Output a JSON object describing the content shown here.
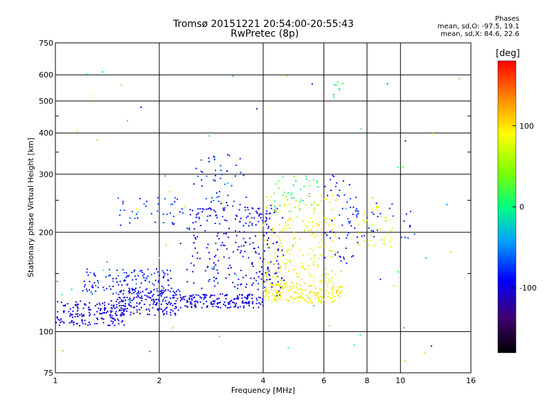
{
  "title_line1": "Tromsø 20151221 20:54:00-20:55:43",
  "title_line2": "RwPretec (8p)",
  "phases": {
    "heading": "Phases",
    "line_o": "mean, sd,O: -97.5, 19.1",
    "line_x": "mean, sd,X: 84.6, 22.6"
  },
  "chart_data": {
    "type": "scatter",
    "xlabel": "Frequency [MHz]",
    "ylabel": "Stationary phase Virtual Height [km]",
    "xscale": "log",
    "yscale": "log",
    "xlim": [
      1,
      16
    ],
    "ylim": [
      75,
      750
    ],
    "xticks": [
      1,
      2,
      4,
      6,
      8,
      10,
      16
    ],
    "xtick_labels": [
      "1",
      "2",
      "4",
      "6",
      "8",
      "10",
      "16"
    ],
    "yticks": [
      75,
      100,
      200,
      300,
      400,
      500,
      600,
      750
    ],
    "ytick_labels": [
      "75",
      "100",
      "200",
      "300",
      "400",
      "500",
      "600",
      "750"
    ],
    "grid": true,
    "colorbar": {
      "label": "[deg]",
      "range": [
        -180,
        180
      ],
      "tick_values": [
        -100,
        0,
        100
      ],
      "tick_labels": [
        "-100",
        "0",
        "100"
      ],
      "colormap": "rainbow"
    },
    "point_groups": [
      {
        "f": [
          1.0,
          1.6
        ],
        "h": [
          104,
          124
        ],
        "phase": [
          -120,
          -80
        ],
        "count": 180
      },
      {
        "f": [
          1.5,
          2.3
        ],
        "h": [
          112,
          135
        ],
        "phase": [
          -120,
          -80
        ],
        "count": 180
      },
      {
        "f": [
          2.3,
          4.0
        ],
        "h": [
          118,
          130
        ],
        "phase": [
          -120,
          -80
        ],
        "count": 180
      },
      {
        "f": [
          1.2,
          2.2
        ],
        "h": [
          130,
          155
        ],
        "phase": [
          -110,
          -60
        ],
        "count": 130
      },
      {
        "f": [
          1.5,
          2.5
        ],
        "h": [
          210,
          255
        ],
        "phase": [
          -100,
          -60
        ],
        "count": 40
      },
      {
        "f": [
          2.4,
          4.2
        ],
        "h": [
          135,
          240
        ],
        "phase": [
          -115,
          -75
        ],
        "count": 220
      },
      {
        "f": [
          2.5,
          3.6
        ],
        "h": [
          240,
          345
        ],
        "phase": [
          -100,
          -60
        ],
        "count": 50
      },
      {
        "f": [
          3.8,
          4.6
        ],
        "h": [
          125,
          245
        ],
        "phase": [
          -115,
          -85
        ],
        "count": 60
      },
      {
        "f": [
          4.0,
          6.8
        ],
        "h": [
          122,
          140
        ],
        "phase": [
          70,
          110
        ],
        "count": 180
      },
      {
        "f": [
          4.0,
          6.5
        ],
        "h": [
          140,
          260
        ],
        "phase": [
          70,
          110
        ],
        "count": 200
      },
      {
        "f": [
          4.3,
          6.0
        ],
        "h": [
          230,
          300
        ],
        "phase": [
          -20,
          60
        ],
        "count": 40
      },
      {
        "f": [
          6.0,
          7.6
        ],
        "h": [
          160,
          300
        ],
        "phase": [
          -110,
          -70
        ],
        "count": 50
      },
      {
        "f": [
          7.4,
          9.5
        ],
        "h": [
          180,
          245
        ],
        "phase": [
          60,
          100
        ],
        "count": 40
      },
      {
        "f": [
          7.0,
          11.0
        ],
        "h": [
          190,
          250
        ],
        "phase": [
          -100,
          -70
        ],
        "count": 35
      },
      {
        "f": [
          6.4,
          6.8
        ],
        "h": [
          490,
          575
        ],
        "phase": [
          -40,
          20
        ],
        "count": 8
      },
      {
        "f": [
          1.0,
          16.0
        ],
        "h": [
          80,
          640
        ],
        "phase": [
          -130,
          110
        ],
        "count": 70
      }
    ]
  }
}
